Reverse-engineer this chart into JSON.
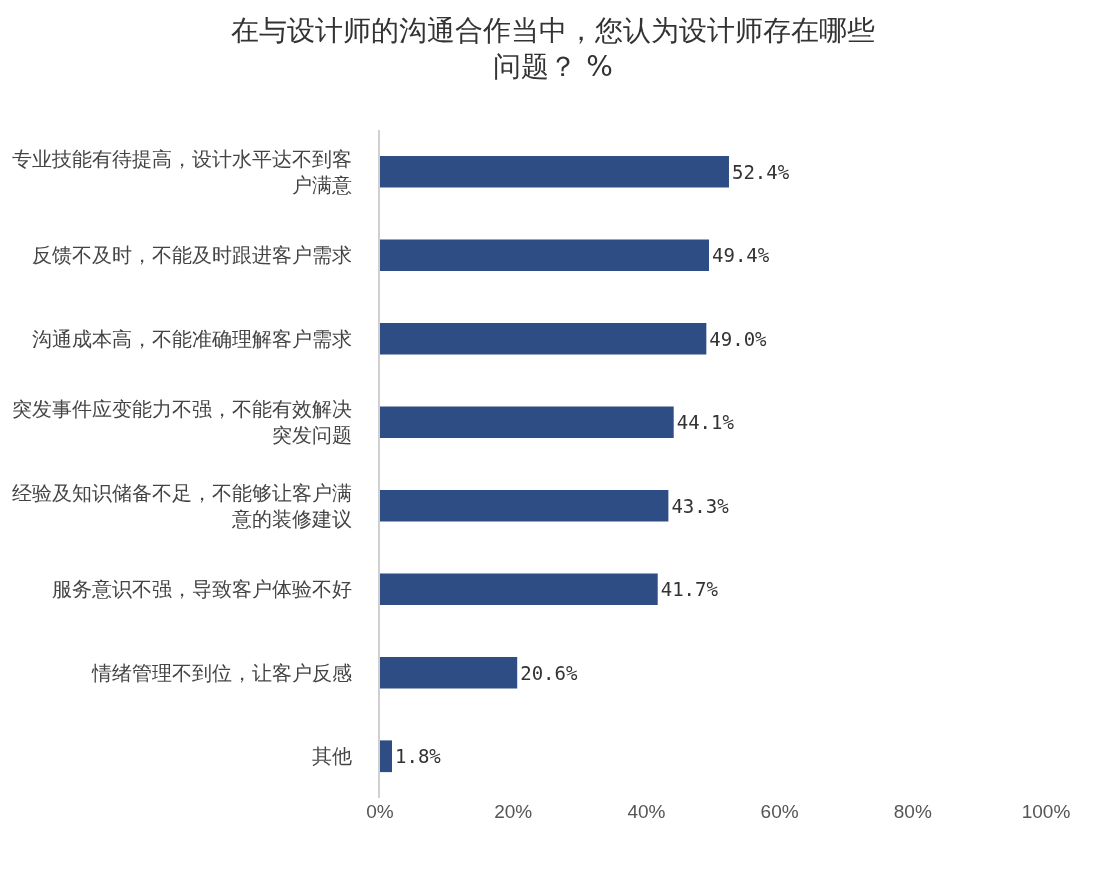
{
  "chart_data": {
    "type": "bar",
    "orientation": "horizontal",
    "title": "在与设计师的沟通合作当中，您认为设计师存在哪些问题？ %",
    "categories": [
      "专业技能有待提高，设计水平达不到客户满意",
      "反馈不及时，不能及时跟进客户需求",
      "沟通成本高，不能准确理解客户需求",
      "突发事件应变能力不强，不能有效解决突发问题",
      "经验及知识储备不足，不能够让客户满意的装修建议",
      "服务意识不强，导致客户体验不好",
      "情绪管理不到位，让客户反感",
      "其他"
    ],
    "values": [
      52.4,
      49.4,
      49.0,
      44.1,
      43.3,
      41.7,
      20.6,
      1.8
    ],
    "value_labels": [
      "52.4%",
      "49.4%",
      "49.0%",
      "44.1%",
      "43.3%",
      "41.7%",
      "20.6%",
      "1.8%"
    ],
    "color": "#2e4d84",
    "xlim": [
      0,
      100
    ],
    "xticks": [
      {
        "value": 0,
        "label": "0%"
      },
      {
        "value": 20,
        "label": "20%"
      },
      {
        "value": 40,
        "label": "40%"
      },
      {
        "value": 60,
        "label": "60%"
      },
      {
        "value": 80,
        "label": "80%"
      },
      {
        "value": 100,
        "label": "100%"
      }
    ]
  }
}
